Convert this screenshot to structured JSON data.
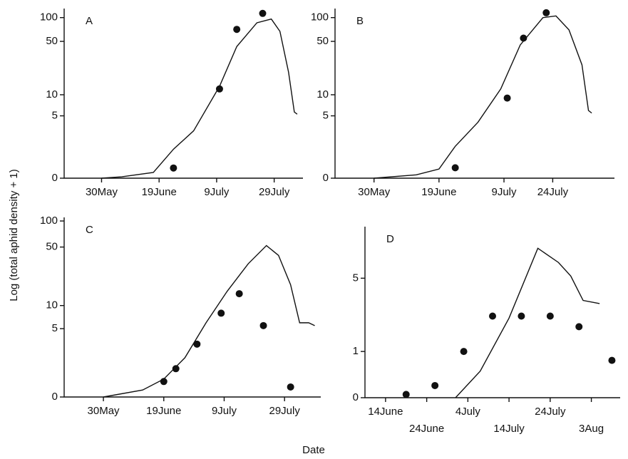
{
  "ylabel": "Log (total aphid density + 1)",
  "xlabel": "Date",
  "chart_data": [
    {
      "type": "line",
      "title": "A",
      "log_scale": true,
      "color": "#111",
      "xlim": [
        "05-17",
        "08-08"
      ],
      "xticks": [
        {
          "value": "05-30",
          "label": "30May"
        },
        {
          "value": "06-19",
          "label": "19June"
        },
        {
          "value": "07-09",
          "label": "9July"
        },
        {
          "value": "07-29",
          "label": "29July"
        }
      ],
      "ylim": [
        0,
        130
      ],
      "yticks": [
        0,
        5,
        10,
        50,
        100
      ],
      "series": [
        {
          "type": "line",
          "x": [
            "05-30",
            "06-06",
            "06-17",
            "06-24",
            "07-01",
            "07-10",
            "07-16",
            "07-23",
            "07-28",
            "07-31",
            "08-03",
            "08-05",
            "08-06"
          ],
          "values": [
            0,
            0.04,
            0.18,
            1.3,
            2.9,
            13,
            43,
            86,
            96,
            67,
            20,
            5.7,
            5.3
          ]
        },
        {
          "type": "scatter",
          "x": [
            "06-24",
            "07-10",
            "07-16",
            "07-25"
          ],
          "values": [
            0.34,
            12,
            71,
            113
          ]
        }
      ]
    },
    {
      "type": "line",
      "title": "B",
      "log_scale": true,
      "color": "#111",
      "xlim": [
        "05-18",
        "08-12"
      ],
      "xticks": [
        {
          "value": "05-30",
          "label": "30May"
        },
        {
          "value": "06-19",
          "label": "19June"
        },
        {
          "value": "07-09",
          "label": "9July"
        },
        {
          "value": "07-24",
          "label": "24July"
        }
      ],
      "ylim": [
        0,
        130
      ],
      "yticks": [
        0,
        5,
        10,
        50,
        100
      ],
      "series": [
        {
          "type": "line",
          "x": [
            "05-30",
            "06-12",
            "06-19",
            "06-24",
            "07-01",
            "07-08",
            "07-14",
            "07-21",
            "07-25",
            "07-29",
            "08-02",
            "08-04",
            "08-05"
          ],
          "values": [
            0,
            0.1,
            0.3,
            1.5,
            4,
            12,
            45,
            100,
            105,
            70,
            25,
            6,
            5.5
          ]
        },
        {
          "type": "scatter",
          "x": [
            "06-24",
            "07-10",
            "07-15",
            "07-22"
          ],
          "values": [
            0.35,
            9,
            55,
            115
          ]
        }
      ]
    },
    {
      "type": "line",
      "title": "C",
      "log_scale": true,
      "color": "#111",
      "xlim": [
        "05-17",
        "08-10"
      ],
      "xticks": [
        {
          "value": "05-30",
          "label": "30May"
        },
        {
          "value": "06-19",
          "label": "19June"
        },
        {
          "value": "07-09",
          "label": "9July"
        },
        {
          "value": "07-29",
          "label": "29July"
        }
      ],
      "ylim": [
        0,
        110
      ],
      "yticks": [
        0,
        5,
        10,
        50,
        100
      ],
      "series": [
        {
          "type": "line",
          "x": [
            "05-30",
            "06-12",
            "06-19",
            "06-26",
            "07-03",
            "07-10",
            "07-17",
            "07-23",
            "07-27",
            "07-31",
            "08-03",
            "08-06",
            "08-08"
          ],
          "values": [
            0,
            0.2,
            0.6,
            1.8,
            6,
            15,
            32,
            52,
            40,
            18,
            6,
            6,
            5.5
          ]
        },
        {
          "type": "scatter",
          "x": [
            "06-19",
            "06-23",
            "06-30",
            "07-08",
            "07-14",
            "07-22",
            "07-31"
          ],
          "values": [
            0.5,
            1.1,
            3,
            8,
            14,
            5.5,
            0.3
          ]
        }
      ]
    },
    {
      "type": "line",
      "title": "D",
      "log_scale": true,
      "color": "#111",
      "xlim": [
        "06-09",
        "08-10"
      ],
      "xticks": [
        {
          "value": "06-14",
          "label": "14June"
        },
        {
          "value": "06-24",
          "label": "24June"
        },
        {
          "value": "07-04",
          "label": "4July"
        },
        {
          "value": "07-14",
          "label": "14July"
        },
        {
          "value": "07-24",
          "label": "24July"
        },
        {
          "value": "08-03",
          "label": "3Aug"
        }
      ],
      "ylim": [
        0,
        12
      ],
      "yticks": [
        0,
        1,
        5
      ],
      "series": [
        {
          "type": "line",
          "x": [
            "07-01",
            "07-07",
            "07-14",
            "07-21",
            "07-26",
            "07-29",
            "08-01",
            "08-05"
          ],
          "values": [
            0,
            0.49,
            2.3,
            8.4,
            6.6,
            5.2,
            3.3,
            3.1
          ]
        },
        {
          "type": "scatter",
          "x": [
            "06-19",
            "06-26",
            "07-03",
            "07-10",
            "07-17",
            "07-24",
            "07-31",
            "08-08"
          ],
          "values": [
            0.05,
            0.2,
            1,
            2.4,
            2.4,
            2.4,
            1.9,
            0.75
          ]
        }
      ]
    }
  ]
}
